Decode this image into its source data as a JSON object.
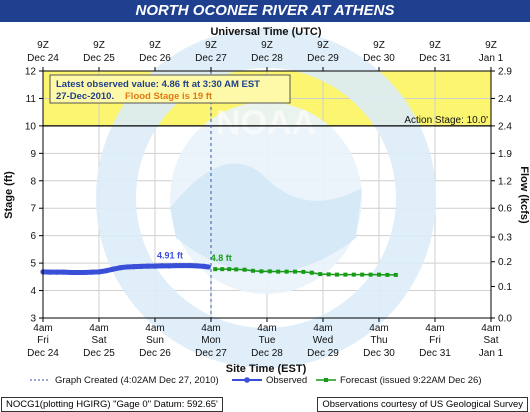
{
  "title": "NORTH OCONEE RIVER AT ATHENS",
  "chart_data": {
    "type": "line",
    "top_axis_title": "Universal Time (UTC)",
    "top_ticks": [
      {
        "l1": "9Z",
        "l2": "Dec 24"
      },
      {
        "l1": "9Z",
        "l2": "Dec 25"
      },
      {
        "l1": "9Z",
        "l2": "Dec 26"
      },
      {
        "l1": "9Z",
        "l2": "Dec 27"
      },
      {
        "l1": "9Z",
        "l2": "Dec 28"
      },
      {
        "l1": "9Z",
        "l2": "Dec 29"
      },
      {
        "l1": "9Z",
        "l2": "Dec 30"
      },
      {
        "l1": "9Z",
        "l2": "Dec 31"
      },
      {
        "l1": "9Z",
        "l2": "Jan 1"
      }
    ],
    "bottom_axis_title": "Site Time (EST)",
    "bottom_ticks": [
      {
        "l1": "4am",
        "l2": "Fri",
        "l3": "Dec 24"
      },
      {
        "l1": "4am",
        "l2": "Sat",
        "l3": "Dec 25"
      },
      {
        "l1": "4am",
        "l2": "Sun",
        "l3": "Dec 26"
      },
      {
        "l1": "4am",
        "l2": "Mon",
        "l3": "Dec 27"
      },
      {
        "l1": "4am",
        "l2": "Tue",
        "l3": "Dec 28"
      },
      {
        "l1": "4am",
        "l2": "Wed",
        "l3": "Dec 29"
      },
      {
        "l1": "4am",
        "l2": "Thu",
        "l3": "Dec 30"
      },
      {
        "l1": "4am",
        "l2": "Fri",
        "l3": "Dec 31"
      },
      {
        "l1": "4am",
        "l2": "Sat",
        "l3": "Jan 1"
      }
    ],
    "y_left_label": "Stage (ft)",
    "y_left_range": [
      3,
      12
    ],
    "y_left_ticks": [
      "3",
      "4",
      "5",
      "6",
      "7",
      "8",
      "9",
      "10",
      "11",
      "12"
    ],
    "y_right_label": "Flow (kcfs)",
    "y_right_ticks": [
      {
        "stage": 3.0,
        "label": "0.0"
      },
      {
        "stage": 4.15,
        "label": "0.1"
      },
      {
        "stage": 5.05,
        "label": "0.2"
      },
      {
        "stage": 5.95,
        "label": "0.3"
      },
      {
        "stage": 7.0,
        "label": "0.6"
      },
      {
        "stage": 8.0,
        "label": "1.2"
      },
      {
        "stage": 9.0,
        "label": "1.9"
      },
      {
        "stage": 10.0,
        "label": "2.4"
      },
      {
        "stage": 11.0,
        "label": "2.4"
      },
      {
        "stage": 12.0,
        "label": "2.9"
      }
    ],
    "action_stage_label": "Action Stage: 10.0'",
    "action_stage": 10.0,
    "flood_stage": 19.0,
    "observed_series": {
      "name": "Observed",
      "points": [
        [
          0.0,
          4.68
        ],
        [
          0.25,
          4.67
        ],
        [
          0.5,
          4.67
        ],
        [
          0.75,
          4.67
        ],
        [
          1.0,
          4.66
        ],
        [
          1.25,
          4.66
        ],
        [
          1.5,
          4.66
        ],
        [
          1.75,
          4.67
        ],
        [
          2.0,
          4.68
        ],
        [
          2.25,
          4.72
        ],
        [
          2.5,
          4.78
        ],
        [
          2.75,
          4.83
        ],
        [
          3.0,
          4.86
        ],
        [
          3.25,
          4.87
        ],
        [
          3.5,
          4.88
        ],
        [
          3.75,
          4.89
        ],
        [
          4.0,
          4.89
        ],
        [
          4.25,
          4.9
        ],
        [
          4.5,
          4.9
        ],
        [
          4.75,
          4.91
        ],
        [
          5.0,
          4.91
        ],
        [
          5.25,
          4.91
        ],
        [
          5.5,
          4.9
        ],
        [
          5.75,
          4.88
        ],
        [
          5.9,
          4.86
        ]
      ]
    },
    "forecast_series": {
      "name": "Forecast (issued 9:22AM Dec 26)",
      "points": [
        [
          6.15,
          4.78
        ],
        [
          6.4,
          4.78
        ],
        [
          6.65,
          4.78
        ],
        [
          6.9,
          4.77
        ],
        [
          7.2,
          4.76
        ],
        [
          7.5,
          4.72
        ],
        [
          7.8,
          4.7
        ],
        [
          8.1,
          4.7
        ],
        [
          8.4,
          4.69
        ],
        [
          8.7,
          4.69
        ],
        [
          9.0,
          4.69
        ],
        [
          9.3,
          4.68
        ],
        [
          9.6,
          4.65
        ],
        [
          9.9,
          4.6
        ],
        [
          10.2,
          4.59
        ],
        [
          10.5,
          4.58
        ],
        [
          10.8,
          4.58
        ],
        [
          11.1,
          4.58
        ],
        [
          11.4,
          4.58
        ],
        [
          11.7,
          4.58
        ],
        [
          12.0,
          4.58
        ],
        [
          12.3,
          4.57
        ],
        [
          12.6,
          4.57
        ]
      ]
    },
    "x_range": [
      0,
      16
    ],
    "graph_created_x": 6.0,
    "observed_peak_label": "4.91 ft",
    "forecast_start_label": "4.8 ft",
    "info_line1": "Latest observed value: 4.86 ft at 3:30 AM EST",
    "info_line2_date": "27-Dec-2010.",
    "info_line2_flood": "Flood Stage is 19 ft",
    "legend": {
      "created": "Graph Created (4:02AM Dec 27, 2010)",
      "observed": "Observed",
      "forecast": "Forecast (issued 9:22AM Dec 26)"
    },
    "watermark": "NOAA",
    "colors": {
      "title_bg": "#1f3f8f",
      "observed": "#3a4fd8",
      "forecast": "#169c16",
      "flood_zone": "#fbf570",
      "info_text": "#1f3f8f",
      "info_flood": "#e07a16"
    }
  },
  "footer": {
    "left": "NOCG1(plotting HGIRG) \"Gage 0\" Datum: 592.65'",
    "right": "Observations courtesy of US Geological Survey"
  }
}
